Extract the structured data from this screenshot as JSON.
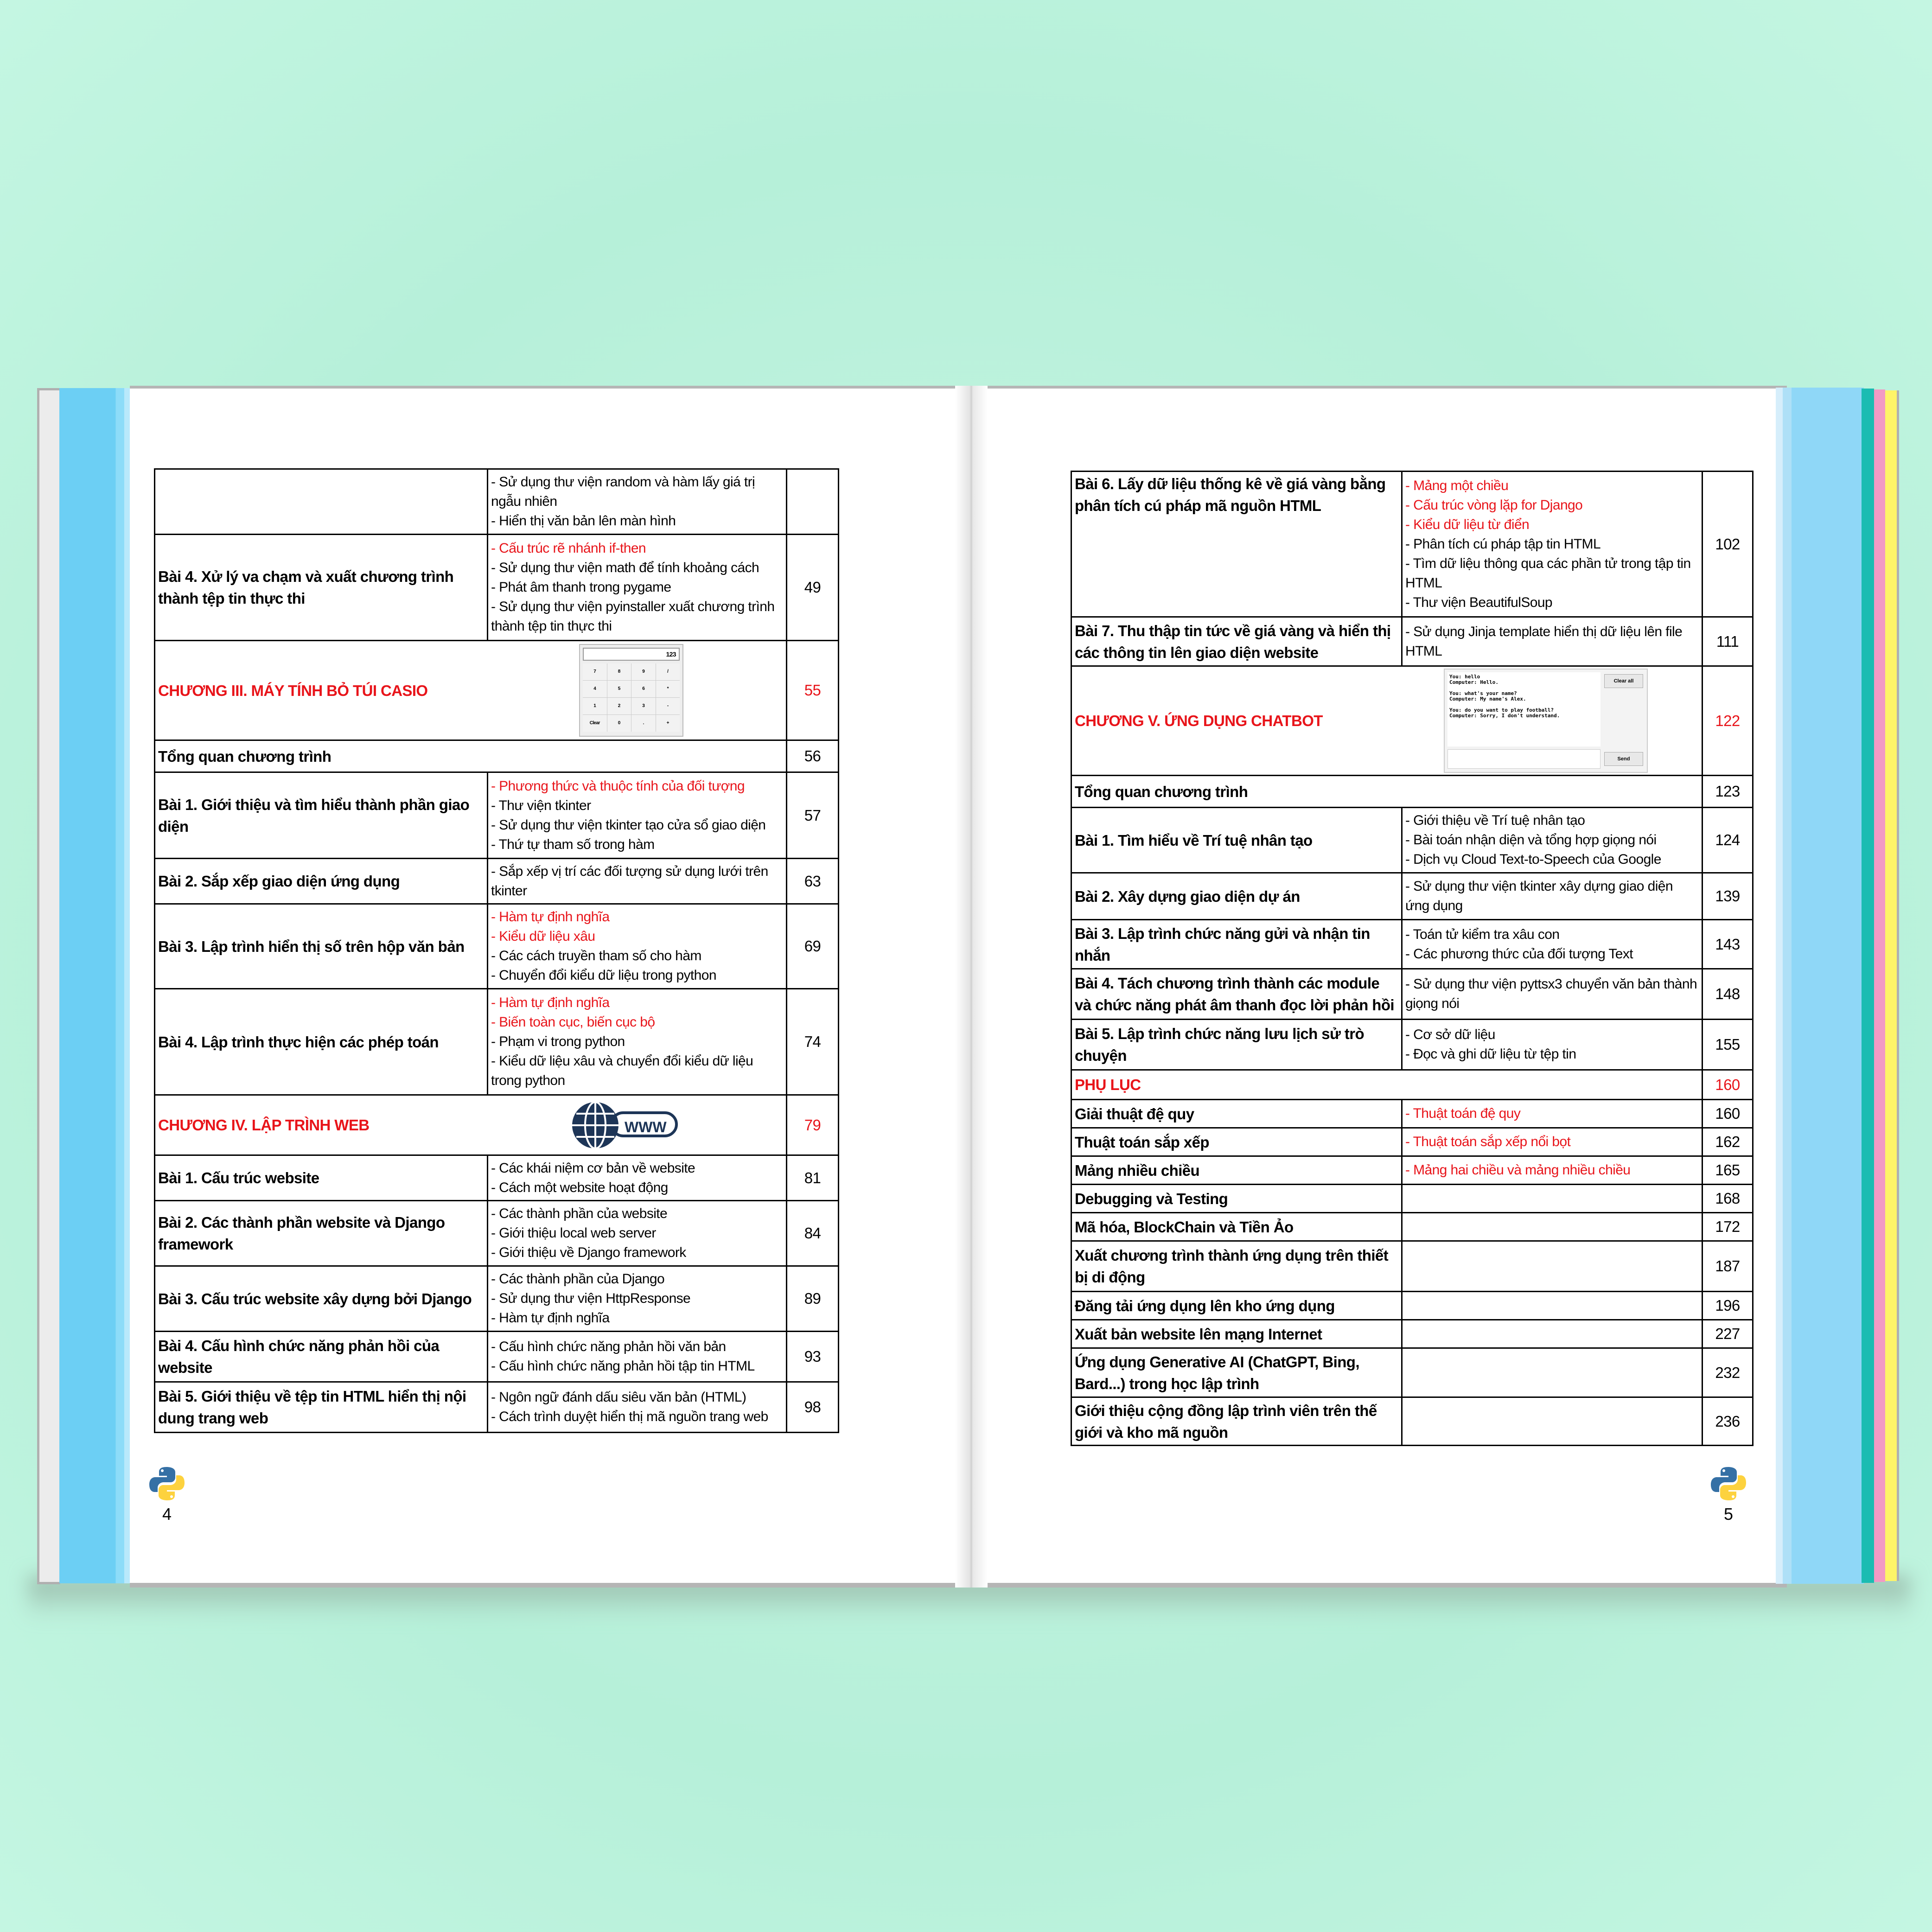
{
  "left_page": {
    "page_number": "4",
    "rows": [
      {
        "title": "",
        "items": [
          {
            "text": "- Sử dụng thư viện random và hàm lấy giá trị ngẫu nhiên",
            "red": false
          },
          {
            "text": "- Hiển thị văn bản lên màn hình",
            "red": false
          }
        ],
        "page": ""
      },
      {
        "title": "Bài 4. Xử lý va chạm và xuất chương trình thành tệp tin thực thi",
        "items": [
          {
            "text": "- Cấu trúc rẽ nhánh if-then",
            "red": true
          },
          {
            "text": "- Sử dụng thư viện math để tính khoảng cách",
            "red": false
          },
          {
            "text": "- Phát âm thanh trong pygame",
            "red": false
          },
          {
            "text": "- Sử dụng thư viện pyinstaller xuất chương trình thành tệp tin thực thi",
            "red": false
          }
        ],
        "page": "49"
      },
      {
        "title": "CHƯƠNG III. MÁY TÍNH BỎ TÚI CASIO",
        "chapter": true,
        "image": "calculator",
        "page": "55"
      },
      {
        "title": "Tổng quan chương trình",
        "span": true,
        "page": "56"
      },
      {
        "title": "Bài 1. Giới thiệu và tìm hiểu thành phần giao diện",
        "items": [
          {
            "text": "- Phương thức và thuộc tính của đối tượng",
            "red": true
          },
          {
            "text": "- Thư viện tkinter",
            "red": false
          },
          {
            "text": "- Sử dụng thư viện tkinter tạo cửa sổ giao diện",
            "red": false
          },
          {
            "text": "- Thứ tự tham số trong hàm",
            "red": false
          }
        ],
        "page": "57"
      },
      {
        "title": "Bài 2. Sắp xếp giao diện ứng dụng",
        "items": [
          {
            "text": "- Sắp xếp vị trí các đối tượng sử dụng lưới trên tkinter",
            "red": false
          }
        ],
        "page": "63"
      },
      {
        "title": "Bài 3. Lập trình hiển thị số trên hộp văn bản",
        "items": [
          {
            "text": "- Hàm tự định nghĩa",
            "red": true
          },
          {
            "text": "- Kiểu dữ liệu xâu",
            "red": true
          },
          {
            "text": "- Các cách truyền tham số cho hàm",
            "red": false
          },
          {
            "text": "- Chuyển đổi kiểu dữ liệu trong python",
            "red": false
          }
        ],
        "page": "69"
      },
      {
        "title": "Bài 4. Lập trình thực hiện các phép toán",
        "items": [
          {
            "text": "- Hàm tự định nghĩa",
            "red": true
          },
          {
            "text": "- Biến toàn cục, biến cục bộ",
            "red": true
          },
          {
            "text": "- Phạm vi trong python",
            "red": false
          },
          {
            "text": "- Kiểu dữ liệu xâu và chuyển đổi kiểu dữ liệu trong python",
            "red": false
          }
        ],
        "page": "74"
      },
      {
        "title": "CHƯƠNG IV. LẬP TRÌNH WEB",
        "chapter": true,
        "image": "www",
        "page": "79"
      },
      {
        "title": "Bài 1. Cấu trúc website",
        "items": [
          {
            "text": "- Các khái niệm cơ bản về website",
            "red": false
          },
          {
            "text": "- Cách một website hoạt động",
            "red": false
          }
        ],
        "page": "81"
      },
      {
        "title": "Bài 2. Các thành phần website và Django framework",
        "items": [
          {
            "text": "- Các thành phần của website",
            "red": false
          },
          {
            "text": "- Giới thiệu local web server",
            "red": false
          },
          {
            "text": "- Giới thiệu về Django framework",
            "red": false
          }
        ],
        "page": "84"
      },
      {
        "title": "Bài 3. Cấu trúc website xây dựng bởi Django",
        "items": [
          {
            "text": "- Các thành phần của Django",
            "red": false
          },
          {
            "text": "- Sử dụng thư viện HttpResponse",
            "red": false
          },
          {
            "text": "- Hàm tự định nghĩa",
            "red": false
          }
        ],
        "page": "89"
      },
      {
        "title": "Bài 4. Cấu hình chức năng phản hồi của website",
        "items": [
          {
            "text": "- Cấu hình chức năng phản hồi văn bản",
            "red": false
          },
          {
            "text": "- Cấu hình chức năng phản hồi tập tin HTML",
            "red": false
          }
        ],
        "page": "93"
      },
      {
        "title": "Bài 5. Giới thiệu về tệp tin HTML hiển thị nội dung trang web",
        "items": [
          {
            "text": "- Ngôn ngữ đánh dấu siêu văn bản (HTML)",
            "red": false
          },
          {
            "text": "- Cách trình duyệt hiển thị mã nguồn trang web",
            "red": false
          }
        ],
        "page": "98"
      }
    ]
  },
  "right_page": {
    "page_number": "5",
    "rows": [
      {
        "title": "Bài 6. Lấy dữ liệu thống kê về giá vàng bằng phân tích cú pháp mã nguồn HTML",
        "top": true,
        "items": [
          {
            "text": "- Mảng một chiều",
            "red": true
          },
          {
            "text": "- Cấu trúc vòng lặp for Django",
            "red": true
          },
          {
            "text": "- Kiểu dữ liệu từ điển",
            "red": true
          },
          {
            "text": "- Phân tích cú pháp tập tin HTML",
            "red": false
          },
          {
            "text": "- Tìm dữ liệu thông qua các phần tử trong tập tin HTML",
            "red": false
          },
          {
            "text": "- Thư viện BeautifulSoup",
            "red": false
          }
        ],
        "page": "102"
      },
      {
        "title": "Bài 7. Thu thập tin tức về giá vàng và hiển thị các thông tin lên giao diện website",
        "items": [
          {
            "text": "- Sử dụng Jinja template hiển thị dữ liệu lên file HTML",
            "red": false
          }
        ],
        "page": "111"
      },
      {
        "title": "CHƯƠNG V. ỨNG DỤNG CHATBOT",
        "chapter": true,
        "image": "chatbot",
        "page": "122"
      },
      {
        "title": "Tổng quan chương trình",
        "span": true,
        "page": "123"
      },
      {
        "title": "Bài 1. Tìm hiểu về Trí tuệ nhân tạo",
        "items": [
          {
            "text": "- Giới thiệu về Trí tuệ nhân tạo",
            "red": false
          },
          {
            "text": "- Bài toán nhận diện và tổng hợp giọng nói",
            "red": false
          },
          {
            "text": "- Dịch vụ Cloud Text-to-Speech của Google",
            "red": false
          }
        ],
        "page": "124"
      },
      {
        "title": "Bài 2. Xây dựng giao diện dự án",
        "items": [
          {
            "text": "- Sử dụng thư viện tkinter xây dựng giao diện ứng dụng",
            "red": false
          }
        ],
        "page": "139"
      },
      {
        "title": "Bài 3. Lập trình chức năng gửi và nhận tin nhắn",
        "items": [
          {
            "text": "- Toán tử kiểm tra xâu con",
            "red": false
          },
          {
            "text": "- Các phương thức của đối tượng Text",
            "red": false
          }
        ],
        "page": "143"
      },
      {
        "title": "Bài 4. Tách chương trình thành các module và chức năng phát âm thanh đọc lời phản hồi",
        "items": [
          {
            "text": "- Sử dụng thư viện pyttsx3 chuyển văn bản thành giọng nói",
            "red": false
          }
        ],
        "page": "148"
      },
      {
        "title": "Bài 5. Lập trình chức năng lưu lịch sử trò chuyện",
        "items": [
          {
            "text": "- Cơ sở dữ liệu",
            "red": false
          },
          {
            "text": "- Đọc và ghi dữ liệu từ tệp tin",
            "red": false
          }
        ],
        "page": "155"
      },
      {
        "title": "PHỤ LỤC",
        "chapter": true,
        "span": true,
        "page": "160"
      },
      {
        "title": "Giải thuật đệ quy",
        "items": [
          {
            "text": "- Thuật toán đệ quy",
            "red": true
          }
        ],
        "page": "160"
      },
      {
        "title": "Thuật toán sắp xếp",
        "items": [
          {
            "text": "- Thuật toán sắp xếp nổi bọt",
            "red": true
          }
        ],
        "page": "162"
      },
      {
        "title": "Mảng nhiều chiều",
        "items": [
          {
            "text": "- Mảng hai chiều và mảng nhiều chiều",
            "red": true
          }
        ],
        "page": "165"
      },
      {
        "title": "Debugging và Testing",
        "items": [],
        "page": "168"
      },
      {
        "title": "Mã hóa, BlockChain và Tiền Ảo",
        "items": [],
        "page": "172"
      },
      {
        "title": "Xuất chương trình thành ứng dụng trên thiết bị di động",
        "items": [],
        "page": "187"
      },
      {
        "title": "Đăng tải ứng dụng lên kho ứng dụng",
        "items": [],
        "page": "196"
      },
      {
        "title": "Xuất bản website lên mạng Internet",
        "items": [],
        "page": "227"
      },
      {
        "title": "Ứng dụng Generative AI (ChatGPT, Bing, Bard...) trong học lập trình",
        "items": [],
        "page": "232"
      },
      {
        "title": "Giới thiệu cộng đồng lập trình viên trên thế giới và kho mã nguồn",
        "items": [],
        "page": "236"
      }
    ]
  },
  "calculator": {
    "display": "123",
    "keys": [
      "7",
      "8",
      "9",
      "/",
      "4",
      "5",
      "6",
      "*",
      "1",
      "2",
      "3",
      "-",
      "Clear",
      "0",
      ".",
      "+"
    ]
  },
  "chatbot": {
    "lines": [
      "You: hello",
      "Computer: Hello.",
      "",
      "You: what's your name?",
      "Computer: My name's Alex.",
      "",
      "You: do you want to play football?",
      "Computer: Sorry, I don't understand."
    ],
    "clear_label": "Clear all",
    "send_label": "Send"
  },
  "www_label": "WWW",
  "colors": {
    "red": "#e8141a",
    "background": "#c4f6e2",
    "spine_blue": "#8fd7f7",
    "teal": "#1bbcb2",
    "pink": "#f29ac4",
    "yellow": "#fef468"
  },
  "icons": {
    "page_logo": "python-logo-icon"
  }
}
